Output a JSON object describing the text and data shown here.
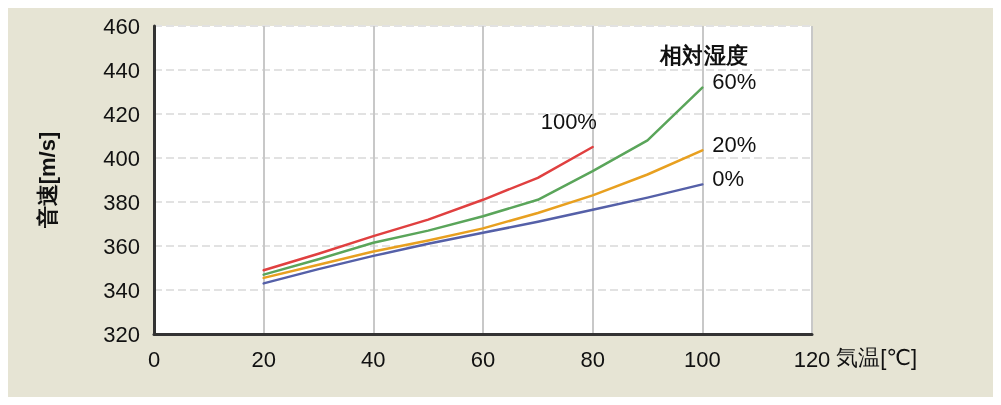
{
  "chart_data": {
    "type": "line",
    "xlabel": "気温[℃]",
    "ylabel": "音速[m/s]",
    "legend_title": "相対湿度",
    "xlim": [
      0,
      120
    ],
    "xticks": [
      0,
      20,
      40,
      60,
      80,
      100,
      120
    ],
    "ylim": [
      320,
      460
    ],
    "yticks": [
      320,
      340,
      360,
      380,
      400,
      420,
      440,
      460
    ],
    "grid": true,
    "legend": false,
    "marker": "none",
    "line_style": "solid",
    "series": [
      {
        "name": "100%",
        "color": "#e04040",
        "x": [
          20,
          30,
          40,
          50,
          60,
          70,
          80
        ],
        "values": [
          349,
          356.5,
          364.5,
          372,
          381,
          391,
          405
        ]
      },
      {
        "name": "60%",
        "color": "#5aa55a",
        "x": [
          20,
          30,
          40,
          50,
          60,
          70,
          80,
          90,
          100
        ],
        "values": [
          347,
          354,
          361.5,
          367,
          373.5,
          381,
          394,
          408,
          432
        ]
      },
      {
        "name": "20%",
        "color": "#e8a020",
        "x": [
          20,
          30,
          40,
          50,
          60,
          70,
          80,
          90,
          100
        ],
        "values": [
          345.5,
          351.5,
          357.5,
          362.5,
          368,
          375,
          383,
          392.5,
          403.5
        ]
      },
      {
        "name": "0%",
        "color": "#5560a8",
        "x": [
          20,
          30,
          40,
          50,
          60,
          70,
          80,
          90,
          100
        ],
        "values": [
          343,
          349.5,
          355.5,
          361,
          366,
          371,
          376.5,
          382,
          388
        ]
      }
    ]
  }
}
